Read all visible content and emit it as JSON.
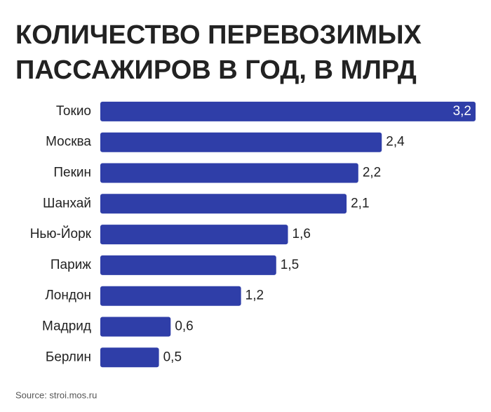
{
  "chart_data": {
    "type": "bar",
    "orientation": "horizontal",
    "title": [
      "КОЛИЧЕСТВО ПЕРЕВОЗИМЫХ",
      "ПАССАЖИРОВ В ГОД, В МЛРД"
    ],
    "categories": [
      "Токио",
      "Москва",
      "Пекин",
      "Шанхай",
      "Нью-Йорк",
      "Париж",
      "Лондон",
      "Мадрид",
      "Берлин"
    ],
    "values": [
      3.2,
      2.4,
      2.2,
      2.1,
      1.6,
      1.5,
      1.2,
      0.6,
      0.5
    ],
    "value_labels": [
      "3,2",
      "2,4",
      "2,2",
      "2,1",
      "1,6",
      "1,5",
      "1,2",
      "0,6",
      "0,5"
    ],
    "color": "#2f3ea8",
    "source": "Source: stroi.mos.ru"
  }
}
